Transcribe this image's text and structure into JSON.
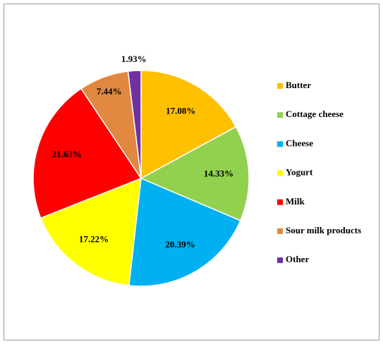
{
  "chart_data": {
    "type": "pie",
    "categories": [
      "Butter",
      "Cottage cheese",
      "Cheese",
      "Yogurt",
      "Milk",
      "Sour milk products",
      "Other"
    ],
    "values": [
      17.08,
      14.33,
      20.39,
      17.22,
      21.63,
      7.44,
      1.93
    ],
    "value_labels": [
      "17.08%",
      "14.33%",
      "20.39%",
      "17.22%",
      "21.63%",
      "7.44%",
      "1.93%"
    ],
    "colors": [
      "#FFC000",
      "#92D050",
      "#00B0F0",
      "#FFFF00",
      "#FF0000",
      "#E0883F",
      "#7030A0"
    ],
    "legend": "right"
  }
}
